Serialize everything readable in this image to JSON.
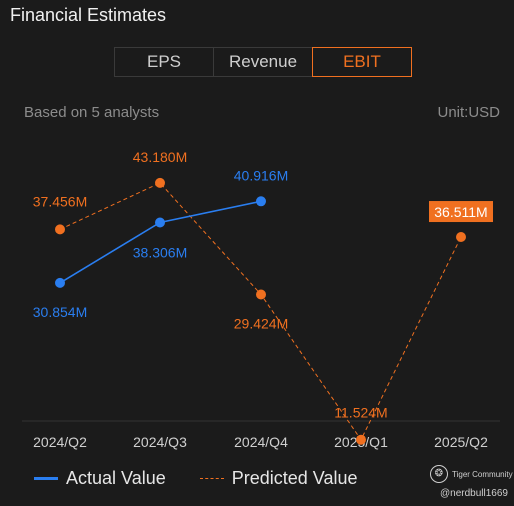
{
  "header": {
    "title": "Financial Estimates",
    "tabs": [
      {
        "label": "EPS",
        "active": false
      },
      {
        "label": "Revenue",
        "active": false
      },
      {
        "label": "EBIT",
        "active": true
      }
    ],
    "analyst_note": "Based on 5 analysts",
    "unit": "Unit:USD"
  },
  "legend": {
    "actual": "Actual Value",
    "predicted": "Predicted Value"
  },
  "watermark": {
    "brand": "Tiger Community",
    "handle": "@nerdbull1669"
  },
  "colors": {
    "actual": "#2a7ef0",
    "predicted": "#f07020",
    "highlight_label_bg": "#f07020"
  },
  "chart_data": {
    "type": "line",
    "categories": [
      "2024/Q2",
      "2024/Q3",
      "2024/Q4",
      "2025/Q1",
      "2025/Q2"
    ],
    "series": [
      {
        "name": "Actual Value",
        "style": "solid",
        "values": [
          30.854,
          38.306,
          40.916,
          null,
          null
        ],
        "labels": [
          "30.854M",
          "38.306M",
          "40.916M",
          null,
          null
        ]
      },
      {
        "name": "Predicted Value",
        "style": "dashed",
        "values": [
          37.456,
          43.18,
          29.424,
          11.524,
          36.511
        ],
        "labels": [
          "37.456M",
          "43.180M",
          "29.424M",
          "11.524M",
          "36.511M"
        ]
      }
    ],
    "unit": "USD",
    "grid": false,
    "legend_position": "bottom"
  }
}
